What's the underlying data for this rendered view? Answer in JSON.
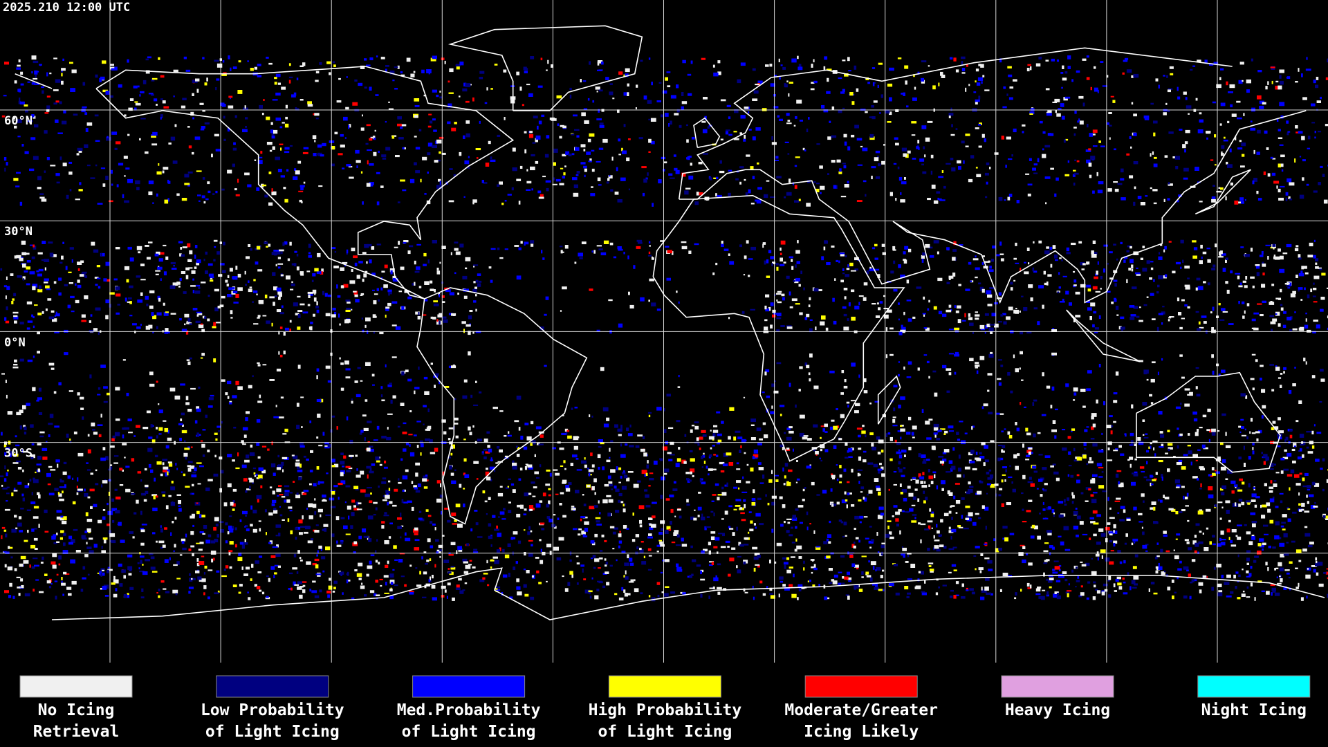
{
  "timestamp": "2025.210 12:00 UTC",
  "latitude_labels": [
    "60°N",
    "30°N",
    "0°N",
    "30°S"
  ],
  "legend": [
    {
      "color": "#f0f0f0",
      "lines": [
        "No Icing",
        "Retrieval"
      ]
    },
    {
      "color": "#000080",
      "lines": [
        "Low Probability",
        "of Light Icing"
      ]
    },
    {
      "color": "#0000ff",
      "lines": [
        "Med.Probability",
        "of Light Icing"
      ]
    },
    {
      "color": "#ffff00",
      "lines": [
        "High Probability",
        "of Light Icing"
      ]
    },
    {
      "color": "#ff0000",
      "lines": [
        "Moderate/Greater",
        "Icing Likely"
      ]
    },
    {
      "color": "#e0a0e0",
      "lines": [
        "Heavy Icing"
      ]
    },
    {
      "color": "#00ffff",
      "lines": [
        "Night Icing"
      ]
    }
  ]
}
